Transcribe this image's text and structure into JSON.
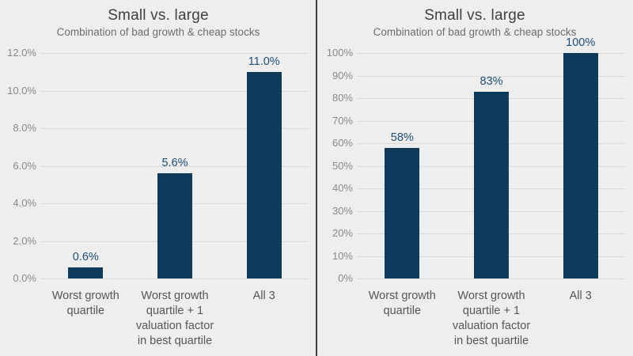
{
  "figure": {
    "description": "Two side-by-side bar charts comparing small vs. large stocks on combinations of bad growth and cheap valuation"
  },
  "colors": {
    "background": "#efeeee",
    "bar": "#0e3a5c",
    "value_label": "#1d4e79",
    "title": "#414141",
    "subtitle": "#6d6d6d",
    "ytick": "#8a8a8a",
    "xlabel": "#575757",
    "gridline": "#dcdbda",
    "divider": "#3d3d3d"
  },
  "chart_data": [
    {
      "type": "bar",
      "title": "Small vs. large",
      "subtitle": "Combination of bad growth & cheap stocks",
      "categories": [
        "Worst growth\nquartile",
        "Worst growth\nquartile + 1\nvaluation factor\nin best quartile",
        "All 3"
      ],
      "values": [
        0.6,
        5.6,
        11.0
      ],
      "value_labels": [
        "0.6%",
        "5.6%",
        "11.0%"
      ],
      "xlabel": "",
      "ylabel": "",
      "ylim": [
        0,
        12
      ],
      "grid": true,
      "legend": "none",
      "yticks": [
        {
          "value": 0,
          "label": "0.0%"
        },
        {
          "value": 2,
          "label": "2.0%"
        },
        {
          "value": 4,
          "label": "4.0%"
        },
        {
          "value": 6,
          "label": "6.0%"
        },
        {
          "value": 8,
          "label": "8.0%"
        },
        {
          "value": 10,
          "label": "10.0%"
        },
        {
          "value": 12,
          "label": "12.0%"
        }
      ]
    },
    {
      "type": "bar",
      "title": "Small vs. large",
      "subtitle": "Combination of bad growth & cheap stocks",
      "categories": [
        "Worst growth\nquartile",
        "Worst growth\nquartile + 1\nvaluation factor\nin best quartile",
        "All 3"
      ],
      "values": [
        58,
        83,
        100
      ],
      "value_labels": [
        "58%",
        "83%",
        "100%"
      ],
      "xlabel": "",
      "ylabel": "",
      "ylim": [
        0,
        100
      ],
      "grid": true,
      "legend": "none",
      "yticks": [
        {
          "value": 0,
          "label": "0%"
        },
        {
          "value": 10,
          "label": "10%"
        },
        {
          "value": 20,
          "label": "20%"
        },
        {
          "value": 30,
          "label": "30%"
        },
        {
          "value": 40,
          "label": "40%"
        },
        {
          "value": 50,
          "label": "50%"
        },
        {
          "value": 60,
          "label": "60%"
        },
        {
          "value": 70,
          "label": "70%"
        },
        {
          "value": 80,
          "label": "80%"
        },
        {
          "value": 90,
          "label": "90%"
        },
        {
          "value": 100,
          "label": "100%"
        }
      ]
    }
  ]
}
